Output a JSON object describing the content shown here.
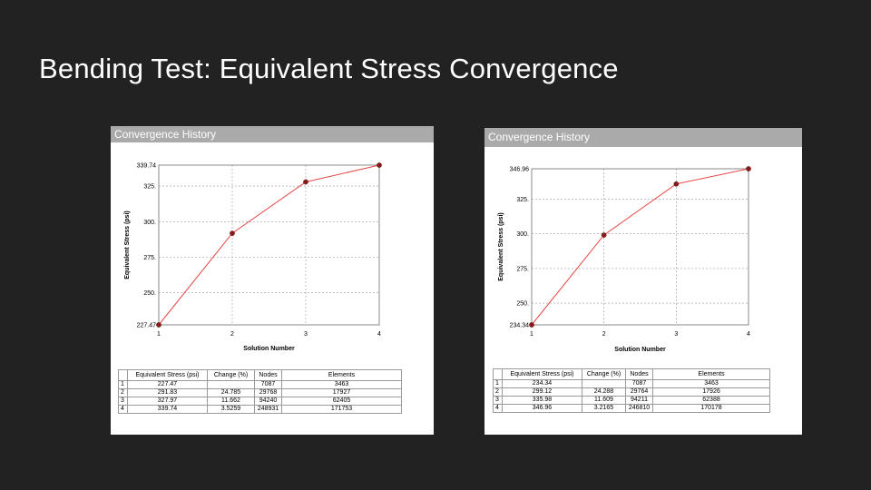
{
  "slide": {
    "title": "Bending Test: Equivalent Stress Convergence"
  },
  "panels": [
    {
      "header": "Convergence History"
    },
    {
      "header": "Convergence History"
    }
  ],
  "chart_data": [
    {
      "type": "line",
      "xlabel": "Solution Number",
      "ylabel": "Equivalent Stress (psi)",
      "x": [
        1,
        2,
        3,
        4
      ],
      "x_tick_labels": [
        "1",
        "2",
        "3",
        "4"
      ],
      "y_tick_values": [
        227.47,
        250,
        275,
        300,
        325,
        339.74
      ],
      "y_tick_labels": [
        "227.47",
        "250.",
        "275.",
        "300.",
        "325.",
        "339.74"
      ],
      "ylim": [
        227.47,
        339.74
      ],
      "grid": true,
      "series": [
        {
          "values": [
            227.47,
            291.83,
            327.97,
            339.74
          ]
        }
      ],
      "line_color": "#e34848",
      "marker_color": "#8b1a1a",
      "table": {
        "columns": [
          "",
          "Equivalent Stress (psi)",
          "Change (%)",
          "Nodes",
          "Elements"
        ],
        "rows": [
          [
            "1",
            "227.47",
            "",
            "7087",
            "3463"
          ],
          [
            "2",
            "291.83",
            "24.785",
            "29768",
            "17927"
          ],
          [
            "3",
            "327.97",
            "11.662",
            "94240",
            "62405"
          ],
          [
            "4",
            "339.74",
            "3.5259",
            "248931",
            "171753"
          ]
        ]
      }
    },
    {
      "type": "line",
      "xlabel": "Solution Number",
      "ylabel": "Equivalent Stress (psi)",
      "x": [
        1,
        2,
        3,
        4
      ],
      "x_tick_labels": [
        "1",
        "2",
        "3",
        "4"
      ],
      "y_tick_values": [
        234.34,
        250,
        275,
        300,
        325,
        346.96
      ],
      "y_tick_labels": [
        "234.34",
        "250.",
        "275.",
        "300.",
        "325.",
        "346.96"
      ],
      "ylim": [
        234.34,
        346.96
      ],
      "grid": true,
      "series": [
        {
          "values": [
            234.34,
            299.12,
            335.98,
            346.96
          ]
        }
      ],
      "line_color": "#e34848",
      "marker_color": "#8b1a1a",
      "table": {
        "columns": [
          "",
          "Equivalent Stress (psi)",
          "Change (%)",
          "Nodes",
          "Elements"
        ],
        "rows": [
          [
            "1",
            "234.34",
            "",
            "7087",
            "3463"
          ],
          [
            "2",
            "299.12",
            "24.288",
            "29764",
            "17926"
          ],
          [
            "3",
            "335.98",
            "11.609",
            "94211",
            "62388"
          ],
          [
            "4",
            "346.96",
            "3.2165",
            "246810",
            "170178"
          ]
        ]
      }
    }
  ]
}
